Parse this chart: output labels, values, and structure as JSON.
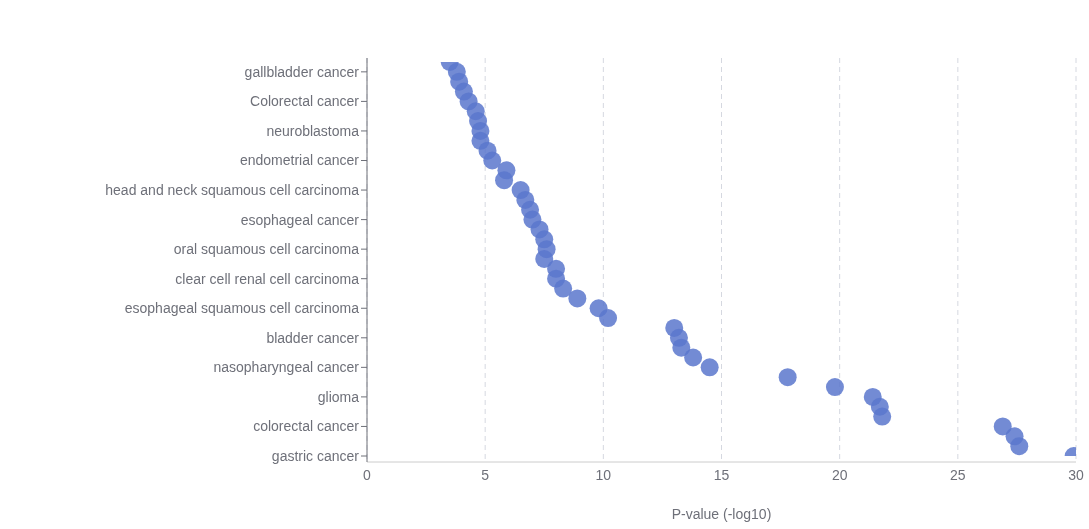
{
  "chart_data": {
    "type": "scatter",
    "xlabel": "P-value (-log10)",
    "orientation": "horizontal",
    "grid": "x",
    "marker": "circle",
    "categories": [
      null,
      "gallbladder cancer",
      null,
      null,
      "Colorectal cancer",
      null,
      null,
      "neuroblastoma",
      null,
      null,
      "endometrial cancer",
      null,
      null,
      "head and neck squamous cell carcinoma",
      null,
      null,
      "esophageal cancer",
      null,
      null,
      "oral squamous cell carcinoma",
      null,
      null,
      "clear cell renal cell carcinoma",
      null,
      null,
      "esophageal squamous cell carcinoma",
      null,
      null,
      "bladder cancer",
      null,
      null,
      "nasopharyngeal cancer",
      null,
      null,
      "glioma",
      null,
      null,
      "colorectal cancer",
      null,
      null,
      "gastric cancer"
    ],
    "series": [
      {
        "color": "#5b77cc",
        "values": [
          3.5,
          3.8,
          3.9,
          4.1,
          4.3,
          4.6,
          4.7,
          4.8,
          4.8,
          5.1,
          5.3,
          5.9,
          5.8,
          6.5,
          6.7,
          6.9,
          7.0,
          7.3,
          7.5,
          7.6,
          7.5,
          8.0,
          8.0,
          8.3,
          8.9,
          9.8,
          10.2,
          13.0,
          13.2,
          13.3,
          13.8,
          14.5,
          17.8,
          19.8,
          21.4,
          21.7,
          21.8,
          26.9,
          27.4,
          27.6,
          29.9
        ]
      }
    ],
    "xlim": [
      0,
      30
    ],
    "xticks": [
      0,
      5,
      10,
      15,
      20,
      25,
      30
    ]
  }
}
